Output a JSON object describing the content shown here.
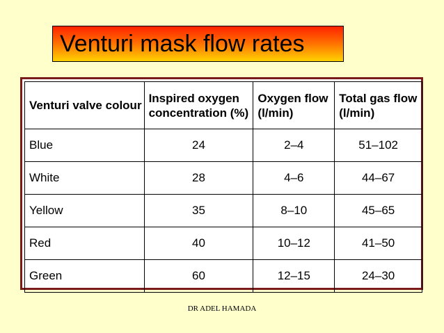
{
  "title": "Venturi mask flow rates",
  "table": {
    "headers": [
      {
        "line1": "Venturi valve colour",
        "line2": ""
      },
      {
        "line1": "Inspired oxygen",
        "line2": "concentration (%)"
      },
      {
        "line1": "Oxygen flow",
        "line2": "(l/min)"
      },
      {
        "line1": "Total gas flow",
        "line2": "(l/min)"
      }
    ],
    "rows": [
      [
        "Blue",
        "24",
        "2–4",
        "51–102"
      ],
      [
        "White",
        "28",
        "4–6",
        "44–67"
      ],
      [
        "Yellow",
        "35",
        "8–10",
        "45–65"
      ],
      [
        "Red",
        "40",
        "10–12",
        "41–50"
      ],
      [
        "Green",
        "60",
        "12–15",
        "24–30"
      ]
    ]
  },
  "footer": "DR ADEL HAMADA",
  "colors": {
    "background": "#ffffcc",
    "title_gradient_top": "#ff2200",
    "title_gradient_bottom": "#ffd200",
    "table_border": "#7a1a1a"
  }
}
